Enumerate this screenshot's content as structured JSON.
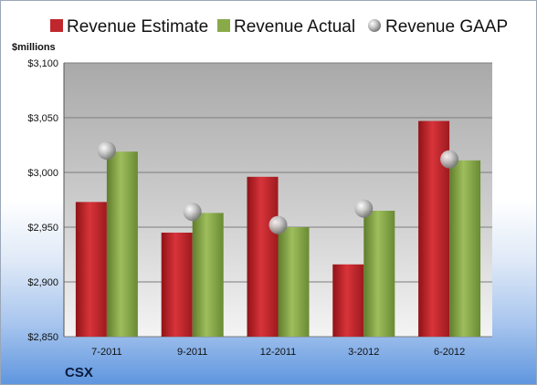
{
  "chart_data": {
    "type": "bar",
    "title": "",
    "ylabel": "$millions",
    "xlabel": "",
    "ylim": [
      2850,
      3100
    ],
    "yticks": [
      2850,
      2900,
      2950,
      3000,
      3050,
      3100
    ],
    "ytick_labels": [
      "$2,850",
      "$2,900",
      "$2,950",
      "$3,000",
      "$3,050",
      "$3,100"
    ],
    "grid": true,
    "legend_position": "top",
    "categories": [
      "7-2011",
      "9-2011",
      "12-2011",
      "3-2012",
      "6-2012"
    ],
    "series": [
      {
        "name": "Revenue Estimate",
        "kind": "bar",
        "color": "#c0272d",
        "values": [
          2973,
          2945,
          2996,
          2916,
          3047
        ]
      },
      {
        "name": "Revenue Actual",
        "kind": "bar",
        "color": "#8aaa4a",
        "values": [
          3019,
          2963,
          2950,
          2965,
          3011
        ]
      },
      {
        "name": "Revenue GAAP",
        "kind": "marker",
        "color": "#a8a8a8",
        "values": [
          3020,
          2964,
          2952,
          2967,
          3012
        ]
      }
    ]
  },
  "footer": {
    "label": "CSX"
  }
}
